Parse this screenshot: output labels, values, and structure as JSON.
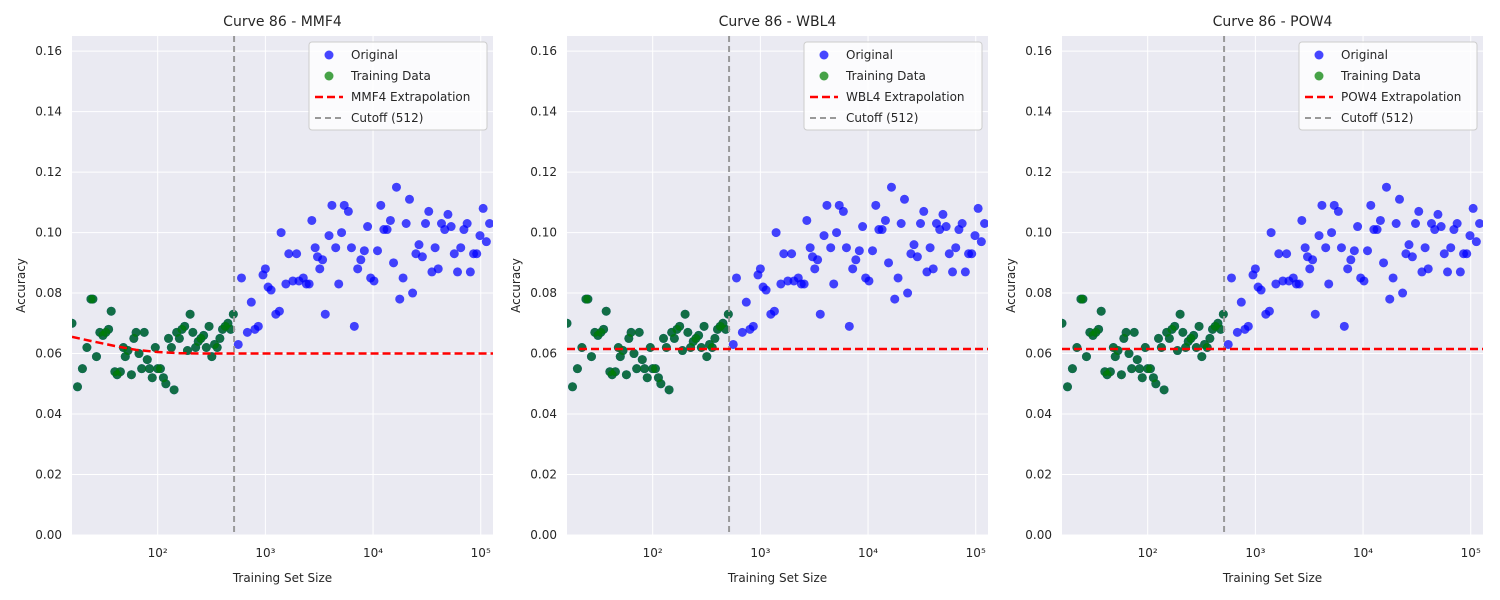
{
  "colors": {
    "original": "#0000ff",
    "training": "#008000",
    "overlap": "#0a6a38",
    "extrapolation": "#ff0000",
    "cutoff": "#999999",
    "plot_bg": "#eaeaf2",
    "grid": "#ffffff"
  },
  "chart_data": [
    {
      "type": "scatter",
      "title": "Curve 86 - MMF4",
      "xlabel": "Training Set Size",
      "ylabel": "Accuracy",
      "x_scale": "log",
      "xlim": [
        16,
        130000
      ],
      "ylim": [
        0,
        0.165
      ],
      "x_ticks": [
        "10²",
        "10³",
        "10⁴",
        "10⁵"
      ],
      "y_ticks": [
        "0.00",
        "0.02",
        "0.04",
        "0.06",
        "0.08",
        "0.10",
        "0.12",
        "0.14",
        "0.16"
      ],
      "grid": true,
      "legend_position": "top-right",
      "legend": [
        "Original",
        "Training Data",
        "MMF4 Extrapolation",
        "Cutoff (512)"
      ],
      "cutoff_x": 512,
      "extrapolation": {
        "x": [
          16,
          25,
          40,
          63,
          100,
          160,
          250,
          400,
          630,
          1000,
          10000,
          130000
        ],
        "y": [
          0.0655,
          0.064,
          0.0625,
          0.0612,
          0.0605,
          0.0601,
          0.06,
          0.06,
          0.06,
          0.06,
          0.06,
          0.06
        ]
      }
    },
    {
      "type": "scatter",
      "title": "Curve 86 - WBL4",
      "xlabel": "Training Set Size",
      "ylabel": "Accuracy",
      "x_scale": "log",
      "xlim": [
        16,
        130000
      ],
      "ylim": [
        0,
        0.165
      ],
      "x_ticks": [
        "10²",
        "10³",
        "10⁴",
        "10⁵"
      ],
      "y_ticks": [
        "0.00",
        "0.02",
        "0.04",
        "0.06",
        "0.08",
        "0.10",
        "0.12",
        "0.14",
        "0.16"
      ],
      "grid": true,
      "legend_position": "top-right",
      "legend": [
        "Original",
        "Training Data",
        "WBL4 Extrapolation",
        "Cutoff (512)"
      ],
      "cutoff_x": 512,
      "extrapolation": {
        "x": [
          16,
          130000
        ],
        "y": [
          0.0615,
          0.0615
        ]
      }
    },
    {
      "type": "scatter",
      "title": "Curve 86 - POW4",
      "xlabel": "Training Set Size",
      "ylabel": "Accuracy",
      "x_scale": "log",
      "xlim": [
        16,
        130000
      ],
      "ylim": [
        0,
        0.165
      ],
      "x_ticks": [
        "10²",
        "10³",
        "10⁴",
        "10⁵"
      ],
      "y_ticks": [
        "0.00",
        "0.02",
        "0.04",
        "0.06",
        "0.08",
        "0.10",
        "0.12",
        "0.14",
        "0.16"
      ],
      "grid": true,
      "legend_position": "top-right",
      "legend": [
        "Original",
        "Training Data",
        "POW4 Extrapolation",
        "Cutoff (512)"
      ],
      "cutoff_x": 512,
      "extrapolation": {
        "x": [
          16,
          130000
        ],
        "y": [
          0.0615,
          0.0615
        ]
      }
    }
  ],
  "shared_points": {
    "training": {
      "x": [
        16,
        18,
        20,
        22,
        24,
        25,
        27,
        29,
        31,
        33,
        35,
        37,
        40,
        42,
        45,
        48,
        50,
        53,
        57,
        60,
        63,
        67,
        71,
        75,
        80,
        84,
        89,
        95,
        100,
        106,
        113,
        119,
        126,
        134,
        142,
        150,
        159,
        168,
        178,
        189,
        200,
        212,
        225,
        238,
        252,
        267,
        283,
        300,
        318,
        337,
        357,
        378,
        400,
        424,
        449,
        476,
        504
      ],
      "y": [
        0.07,
        0.049,
        0.055,
        0.062,
        0.078,
        0.078,
        0.059,
        0.067,
        0.066,
        0.067,
        0.068,
        0.074,
        0.054,
        0.053,
        0.054,
        0.062,
        0.059,
        0.061,
        0.053,
        0.065,
        0.067,
        0.06,
        0.055,
        0.067,
        0.058,
        0.055,
        0.052,
        0.062,
        0.055,
        0.055,
        0.052,
        0.05,
        0.065,
        0.062,
        0.048,
        0.067,
        0.065,
        0.068,
        0.069,
        0.061,
        0.073,
        0.067,
        0.062,
        0.064,
        0.065,
        0.066,
        0.062,
        0.069,
        0.059,
        0.063,
        0.062,
        0.065,
        0.068,
        0.069,
        0.07,
        0.068,
        0.073
      ]
    },
    "original_extra": {
      "x": [
        560,
        600,
        680,
        740,
        800,
        860,
        950,
        1000,
        1060,
        1130,
        1250,
        1350,
        1400,
        1550,
        1650,
        1800,
        1950,
        2050,
        2250,
        2400,
        2550,
        2700,
        2900,
        3050,
        3200,
        3400,
        3600,
        3900,
        4150,
        4500,
        4800,
        5100,
        5400,
        5900,
        6300,
        6700,
        7200,
        7700,
        8300,
        8900,
        9500,
        10200,
        11000,
        11800,
        12600,
        13500,
        14500,
        15500,
        16500,
        17700,
        19000,
        20300,
        21800,
        23300,
        25000,
        26700,
        28700,
        30700,
        32900,
        35200,
        37700,
        40300,
        43200,
        46300,
        49600,
        53100,
        56800,
        60900,
        65200,
        69800,
        74800,
        80100,
        85800,
        91800,
        98400,
        105300,
        112800,
        120800
      ],
      "y": [
        0.063,
        0.085,
        0.067,
        0.077,
        0.068,
        0.069,
        0.086,
        0.088,
        0.082,
        0.081,
        0.073,
        0.074,
        0.1,
        0.083,
        0.093,
        0.084,
        0.093,
        0.084,
        0.085,
        0.083,
        0.083,
        0.104,
        0.095,
        0.092,
        0.088,
        0.091,
        0.073,
        0.099,
        0.109,
        0.095,
        0.083,
        0.1,
        0.109,
        0.107,
        0.095,
        0.069,
        0.088,
        0.091,
        0.094,
        0.102,
        0.085,
        0.084,
        0.094,
        0.109,
        0.101,
        0.101,
        0.104,
        0.09,
        0.115,
        0.078,
        0.085,
        0.103,
        0.111,
        0.08,
        0.093,
        0.096,
        0.092,
        0.103,
        0.107,
        0.087,
        0.095,
        0.088,
        0.103,
        0.101,
        0.106,
        0.102,
        0.093,
        0.087,
        0.095,
        0.101,
        0.103,
        0.087,
        0.093,
        0.093,
        0.099,
        0.108,
        0.097,
        0.103
      ]
    }
  }
}
